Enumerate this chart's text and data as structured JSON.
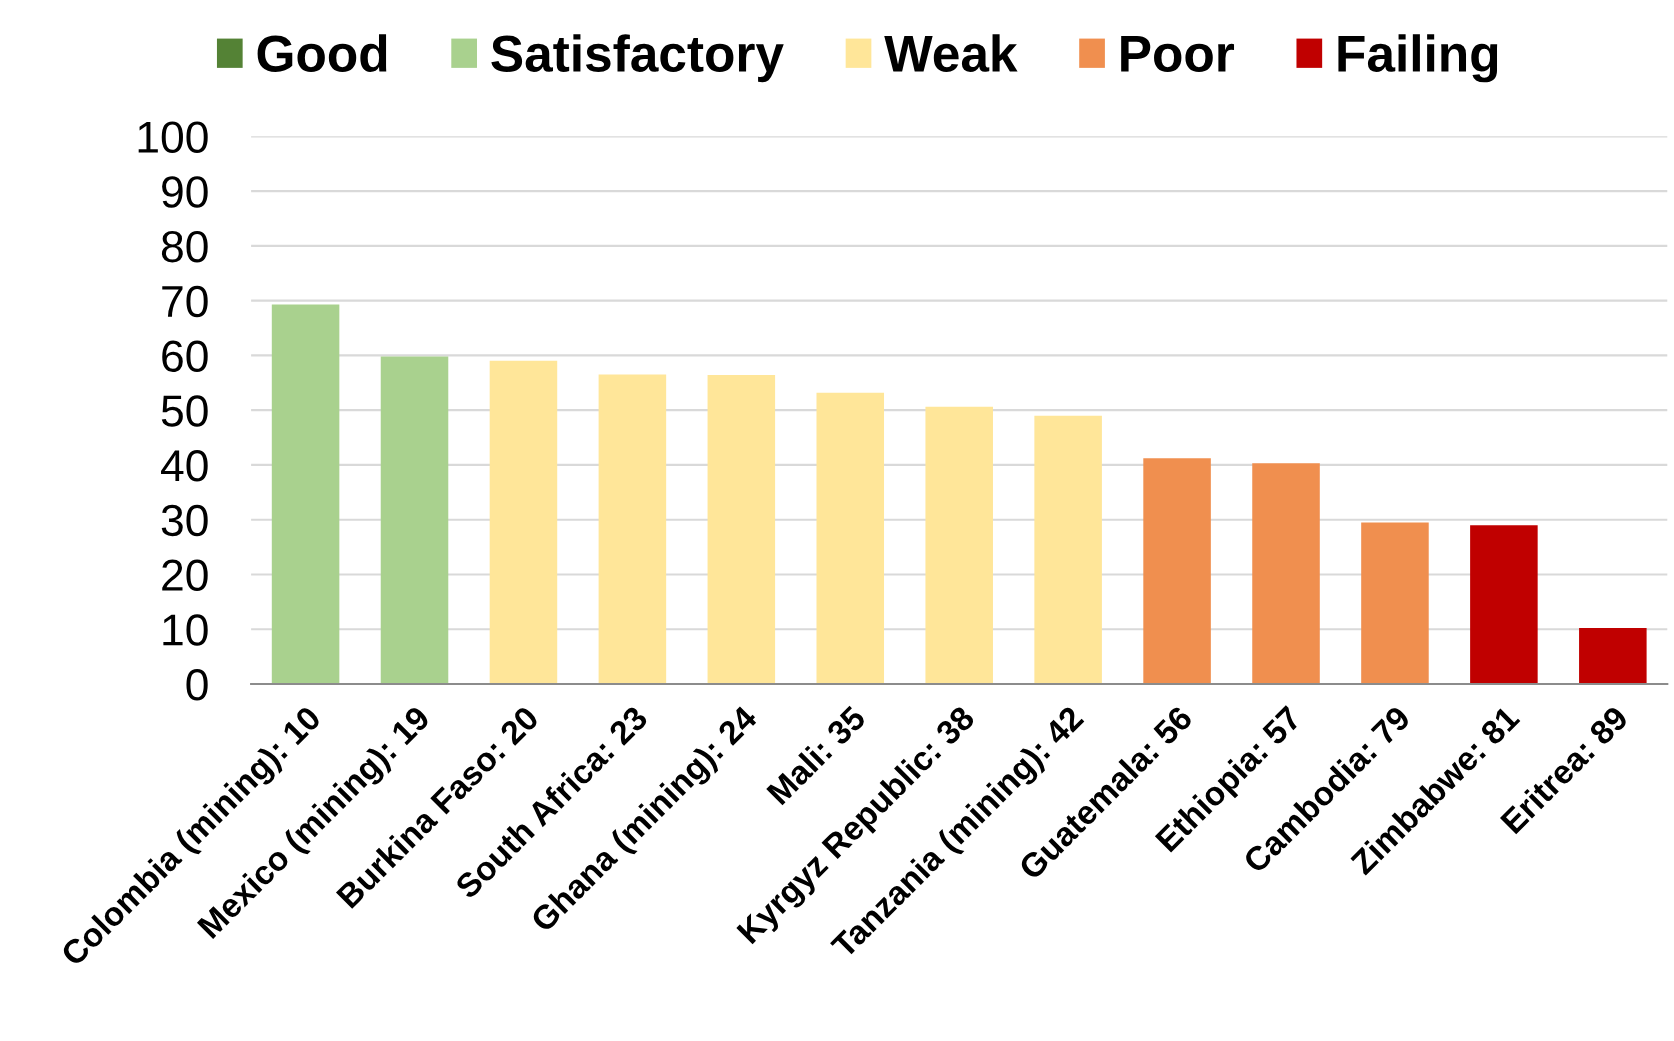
{
  "chart_data": {
    "type": "bar",
    "stacked": true,
    "categories": [
      "Colombia (mining): 10",
      "Mexico (mining): 19",
      "Burkina Faso: 20",
      "South Africa: 23",
      "Ghana (mining): 24",
      "Mali: 35",
      "Kyrgyz Republic: 38",
      "Tanzania (mining): 42",
      "Guatemala: 56",
      "Ethiopia: 57",
      "Cambodia: 79",
      "Zimbabwe: 81",
      "Eritrea: 89"
    ],
    "series": [
      {
        "name": "Good",
        "color": "#548235",
        "values": [
          null,
          null,
          null,
          null,
          null,
          null,
          null,
          null,
          null,
          null,
          null,
          null,
          null
        ]
      },
      {
        "name": "Satisfactory",
        "color": "#a9d18e",
        "values": [
          69.3,
          59.8,
          null,
          null,
          null,
          null,
          null,
          null,
          null,
          null,
          null,
          null,
          null
        ]
      },
      {
        "name": "Weak",
        "color": "#ffe699",
        "values": [
          null,
          null,
          59.0,
          56.5,
          56.4,
          53.2,
          50.6,
          49.0,
          null,
          null,
          null,
          null,
          null
        ]
      },
      {
        "name": "Poor",
        "color": "#f08f4f",
        "values": [
          null,
          null,
          null,
          null,
          null,
          null,
          null,
          null,
          41.2,
          40.3,
          29.5,
          null,
          null
        ]
      },
      {
        "name": "Failing",
        "color": "#c00000",
        "values": [
          null,
          null,
          null,
          null,
          null,
          null,
          null,
          null,
          null,
          null,
          null,
          29.0,
          10.2
        ]
      }
    ],
    "ylim": [
      0,
      100
    ],
    "yticks": [
      0,
      10,
      20,
      30,
      40,
      50,
      60,
      70,
      80,
      90,
      100
    ],
    "grid": "y",
    "legend": "top"
  }
}
